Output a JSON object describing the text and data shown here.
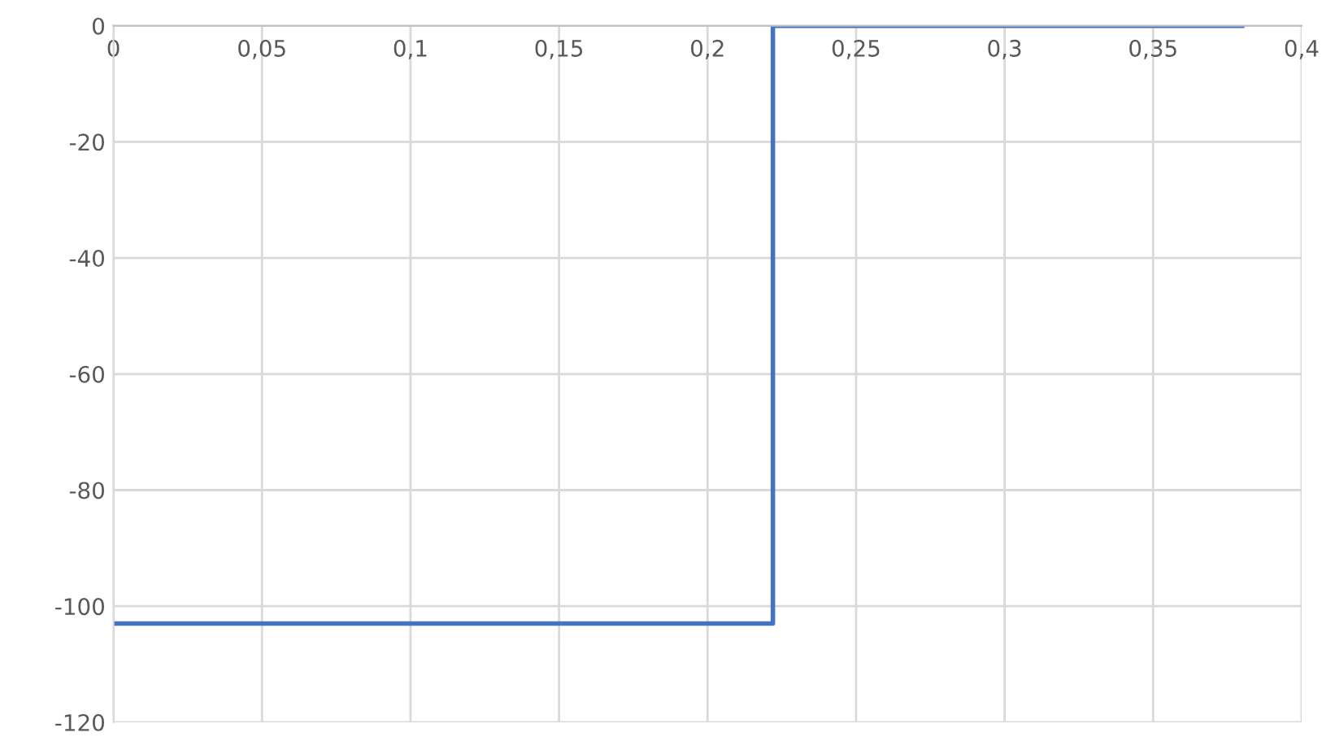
{
  "chart_data": {
    "type": "line",
    "x": [
      0,
      0.222,
      0.222,
      0.38
    ],
    "series": [
      {
        "color": "#4472c4",
        "values": [
          -103,
          -103,
          0,
          0
        ]
      }
    ],
    "xlim": [
      0,
      0.4
    ],
    "ylim": [
      -120,
      0
    ],
    "xticks": [
      0,
      {
        "value": 0.05,
        "label": "0,05"
      },
      {
        "value": 0.1,
        "label": "0,1"
      },
      {
        "value": 0.15,
        "label": "0,15"
      },
      {
        "value": 0.2,
        "label": "0,2"
      },
      {
        "value": 0.25,
        "label": "0,25"
      },
      {
        "value": 0.3,
        "label": "0,3"
      },
      {
        "value": 0.35,
        "label": "0,35"
      },
      {
        "value": 0.4,
        "label": "0,4"
      }
    ],
    "yticks": [
      {
        "value": -120,
        "label": "-120"
      },
      {
        "value": -100,
        "label": "-100"
      },
      {
        "value": -80,
        "label": "-80"
      },
      {
        "value": -60,
        "label": "-60"
      },
      {
        "value": -40,
        "label": "-40"
      },
      {
        "value": -20,
        "label": "-20"
      },
      0
    ],
    "grid": true,
    "marker": "none",
    "line_style": "solid"
  }
}
